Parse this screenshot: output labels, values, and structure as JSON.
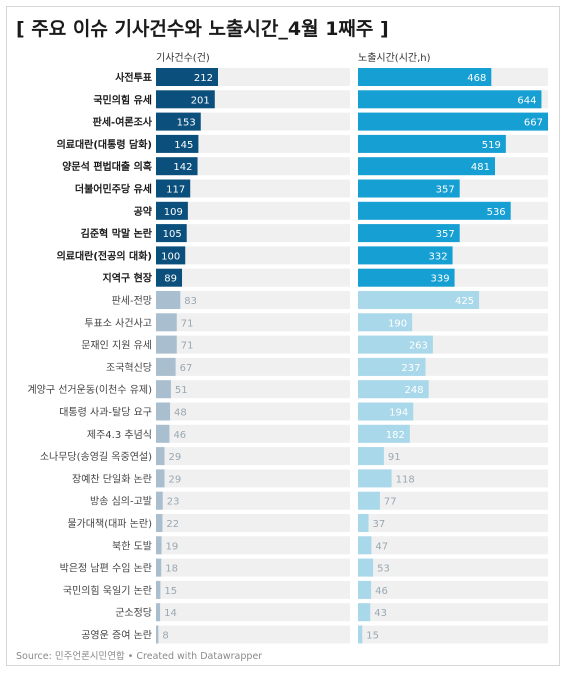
{
  "title": "[ 주요 이슈 기사건수와 노출시간_4월 1째주 ]",
  "footer": "Source: 민주언론시민연합 • Created with Datawrapper",
  "colors": {
    "count_dark": "#0b4f7c",
    "count_light": "#a9bfcf",
    "time_dark": "#159fd3",
    "time_light": "#a9d8ea",
    "track": "#f0f0f0",
    "label_light": "#9aa8b2"
  },
  "chart_data": {
    "type": "bar",
    "orientation": "horizontal",
    "highlighted_count": 10,
    "categories": [
      "사전투표",
      "국민의힘 유세",
      "판세-여론조사",
      "의료대란(대통령 담화)",
      "양문석 편법대출 의혹",
      "더불어민주당 유세",
      "공약",
      "김준혁 막말 논란",
      "의료대란(전공의 대화)",
      "지역구 현장",
      "판세-전망",
      "투표소 사건사고",
      "문재인 지원 유세",
      "조국혁신당",
      "계양구 선거운동(이천수 유제)",
      "대통령 사과-탈당 요구",
      "제주4.3 추념식",
      "소나무당(송영길 옥중연설)",
      "장예찬 단일화 논란",
      "방송 심의-고발",
      "물가대책(대파 논란)",
      "북한 도발",
      "박은정 남편 수임 논란",
      "국민의힘 욱일기 논란",
      "군소정당",
      "공영운 증여 논란"
    ],
    "series": [
      {
        "name": "기사건수(건)",
        "values": [
          212,
          201,
          153,
          145,
          142,
          117,
          109,
          105,
          100,
          89,
          83,
          71,
          71,
          67,
          51,
          48,
          46,
          29,
          29,
          23,
          22,
          19,
          18,
          15,
          14,
          8
        ],
        "max": 212
      },
      {
        "name": "노출시간(시간,h)",
        "values": [
          468,
          644,
          667,
          519,
          481,
          357,
          536,
          357,
          332,
          339,
          425,
          190,
          263,
          237,
          248,
          194,
          182,
          91,
          118,
          77,
          37,
          47,
          53,
          46,
          43,
          15
        ],
        "max": 667
      }
    ]
  }
}
